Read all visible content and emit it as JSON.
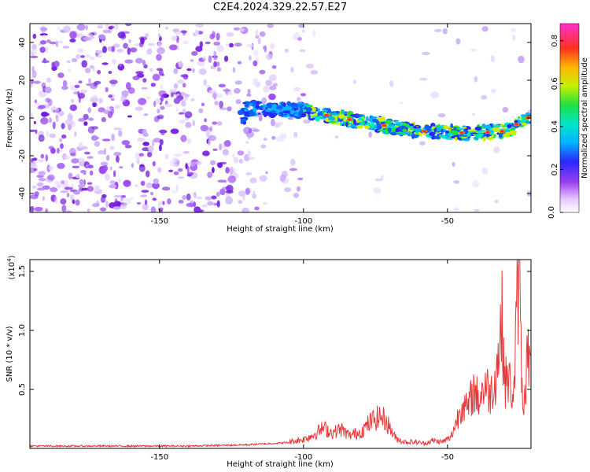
{
  "title": "C2E4.2024.329.22.57.E27",
  "chart_data": [
    {
      "type": "heatmap",
      "xlabel": "Height of straight line (km)",
      "ylabel": "Frequency (Hz)",
      "xlim": [
        -195,
        -21
      ],
      "ylim": [
        -50,
        50
      ],
      "xticks": [
        -150,
        -100,
        -50
      ],
      "yticks": [
        -40,
        -20,
        0,
        20,
        40
      ],
      "colorbar": {
        "label": "Normalized spectral amplitude",
        "range": [
          0.0,
          0.88
        ],
        "ticks": [
          "0.0",
          "0.2",
          "0.4",
          "0.6",
          "0.8"
        ]
      },
      "ridge": [
        {
          "x": -120,
          "freq": 5
        },
        {
          "x": -100,
          "freq": 4
        },
        {
          "x": -80,
          "freq": -2
        },
        {
          "x": -60,
          "freq": -7
        },
        {
          "x": -40,
          "freq": -8
        },
        {
          "x": -30,
          "freq": -7
        },
        {
          "x": -21,
          "freq": 1
        }
      ]
    },
    {
      "type": "line",
      "xlabel": "Height of straight line (km)",
      "ylabel": "SNR (10 * v/v)",
      "y_multiplier": "(x10",
      "y_multiplier_exp": "4",
      "y_multiplier_close": ")",
      "xlim": [
        -195,
        -21
      ],
      "ylim": [
        0,
        1.6
      ],
      "xticks": [
        -150,
        -100,
        -50
      ],
      "yticks": [
        "0.5",
        "1.0",
        "1.5"
      ],
      "color": "#e8383a",
      "series": [
        {
          "x": [
            -195,
            -180,
            -160,
            -140,
            -120,
            -105,
            -100,
            -97,
            -93,
            -90,
            -87,
            -84,
            -80,
            -76,
            -73,
            -71,
            -68,
            -65,
            -62,
            -58,
            -55,
            -52,
            -49,
            -47,
            -45,
            -43,
            -41,
            -39,
            -37,
            -35,
            -33,
            -31,
            -30,
            -29,
            -27,
            -25,
            -24,
            -23,
            -22,
            -21
          ],
          "y": [
            0.02,
            0.02,
            0.02,
            0.02,
            0.03,
            0.05,
            0.07,
            0.1,
            0.16,
            0.12,
            0.15,
            0.1,
            0.13,
            0.22,
            0.25,
            0.2,
            0.08,
            0.05,
            0.05,
            0.04,
            0.06,
            0.05,
            0.08,
            0.2,
            0.35,
            0.3,
            0.45,
            0.38,
            0.5,
            0.42,
            0.6,
            1.0,
            0.5,
            0.55,
            0.4,
            1.6,
            0.3,
            0.5,
            0.75,
            0.55
          ]
        }
      ]
    }
  ]
}
